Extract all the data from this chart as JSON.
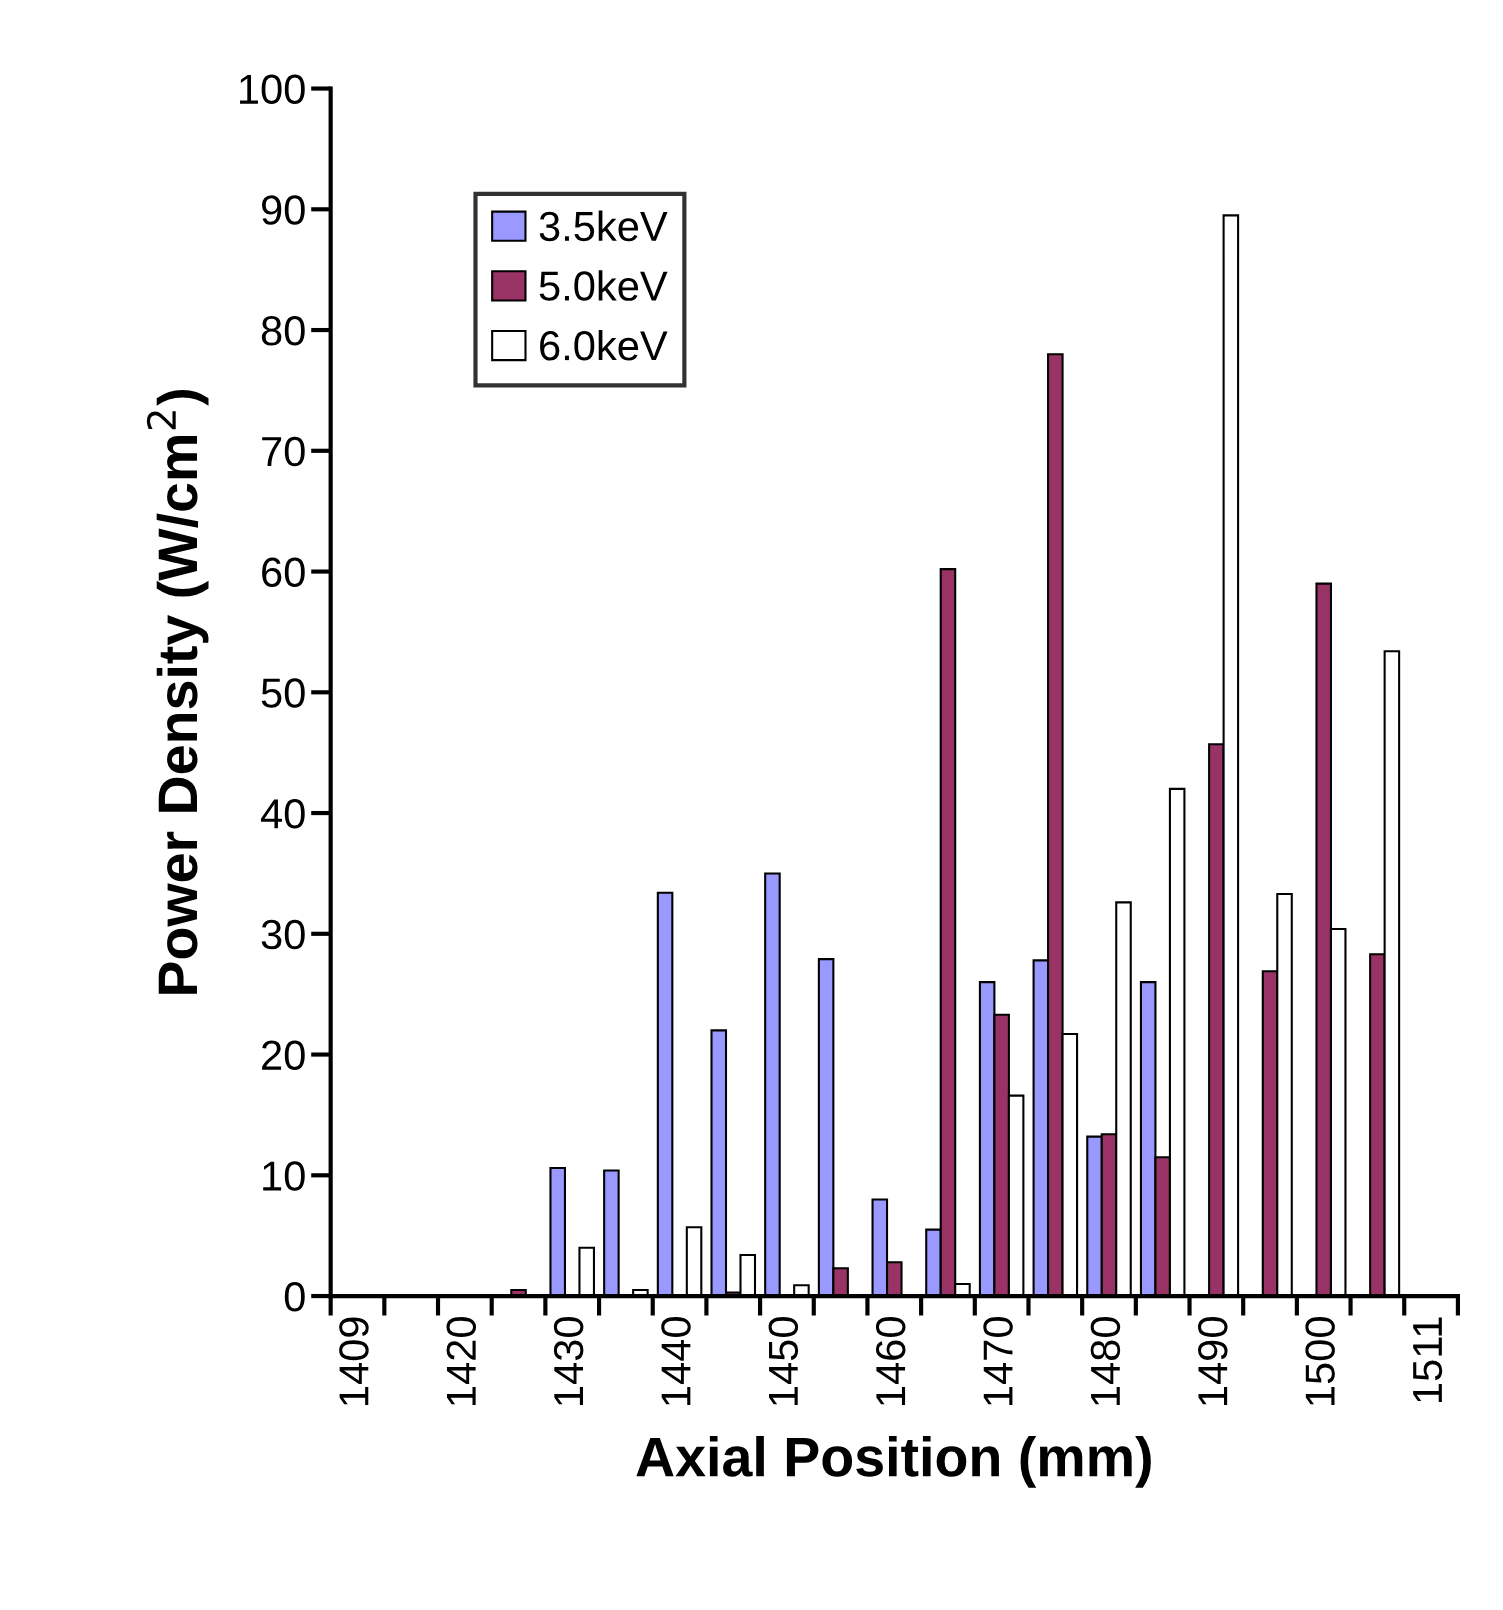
{
  "chart_data": {
    "type": "bar",
    "xlabel": "Axial Position (mm)",
    "ylabel": "Power Density (W/cm$^{2}$)",
    "categories": [
      "1409",
      null,
      "1420",
      null,
      "1430",
      null,
      "1440",
      null,
      "1450",
      null,
      "1460",
      null,
      "1470",
      null,
      "1480",
      null,
      "1490",
      null,
      "1500",
      null,
      "1511"
    ],
    "series": [
      {
        "name": "3.5keV",
        "color": "#9999ff",
        "values": [
          null,
          null,
          null,
          null,
          10.6,
          10.4,
          33.4,
          22,
          35,
          27.9,
          8.0,
          5.5,
          26,
          27.8,
          13.2,
          26,
          null,
          null,
          null,
          null,
          null
        ]
      },
      {
        "name": "5.0keV",
        "color": "#993366",
        "values": [
          null,
          null,
          null,
          0.5,
          null,
          null,
          null,
          0.3,
          null,
          2.3,
          2.8,
          60.2,
          23.3,
          78,
          13.4,
          11.5,
          45.7,
          26.9,
          59,
          28.3,
          null
        ]
      },
      {
        "name": "6.0keV",
        "color": "#ffffff",
        "values": [
          null,
          null,
          null,
          null,
          4.0,
          0.5,
          5.7,
          3.4,
          0.9,
          null,
          null,
          1.0,
          16.6,
          21.7,
          32.6,
          42,
          89.5,
          33.3,
          30.4,
          53.4,
          null
        ]
      }
    ],
    "ylim": [
      0,
      100
    ],
    "yticks": [
      0,
      10,
      20,
      30,
      40,
      50,
      60,
      70,
      80,
      90,
      100
    ],
    "grid": false,
    "legend": "top left"
  }
}
